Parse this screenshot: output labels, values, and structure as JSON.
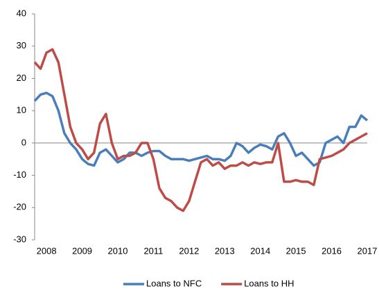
{
  "chart_data": {
    "type": "line",
    "categories": [
      null,
      null,
      "2008",
      null,
      null,
      null,
      null,
      null,
      "2009",
      null,
      null,
      null,
      null,
      null,
      "2010",
      null,
      null,
      null,
      null,
      null,
      "2011",
      null,
      null,
      null,
      null,
      null,
      "2012",
      null,
      null,
      null,
      null,
      null,
      "2013",
      null,
      null,
      null,
      null,
      null,
      "2014",
      null,
      null,
      null,
      null,
      null,
      "2015",
      null,
      null,
      null,
      null,
      null,
      "2016",
      null,
      null,
      null,
      null,
      null,
      "2017"
    ],
    "series": [
      {
        "name": "Loans to NFC",
        "color": "#4a7ebb",
        "values": [
          13,
          15,
          15.5,
          14.5,
          10,
          3,
          0,
          -2,
          -5,
          -6.5,
          -7,
          -3,
          -2,
          -4,
          -6,
          -5,
          -3,
          -3,
          -4,
          -3,
          -2.5,
          -2.5,
          -4,
          -5,
          -5,
          -5,
          -5.5,
          -5,
          -4.5,
          -4,
          -5,
          -5,
          -5.5,
          -4,
          0,
          -1,
          -3,
          -1.5,
          -0.5,
          -1,
          -2,
          2,
          3,
          0,
          -4,
          -3,
          -5,
          -7,
          -6,
          0,
          1,
          2,
          0,
          5,
          5,
          8.5,
          7
        ]
      },
      {
        "name": "Loans to HH",
        "color": "#be4b48",
        "values": [
          25,
          23,
          28,
          29,
          25,
          15,
          5,
          0,
          -2,
          -5,
          -3,
          6,
          9,
          0,
          -5,
          -4,
          -4,
          -3,
          0,
          0,
          -5,
          -14,
          -17,
          -18,
          -20,
          -21,
          -18,
          -12,
          -6,
          -5,
          -7,
          -6,
          -8,
          -7,
          -7,
          -6,
          -7,
          -6,
          -6.5,
          -6,
          -6,
          0,
          -12,
          -12,
          -11.5,
          -12,
          -12,
          -13,
          -5,
          -4.5,
          -4,
          -3,
          -2,
          0,
          1,
          2,
          3
        ]
      }
    ],
    "ylim": [
      -30,
      40
    ],
    "yticks": [
      -30,
      -20,
      -10,
      0,
      10,
      20,
      30,
      40
    ],
    "legend": "bottom"
  }
}
